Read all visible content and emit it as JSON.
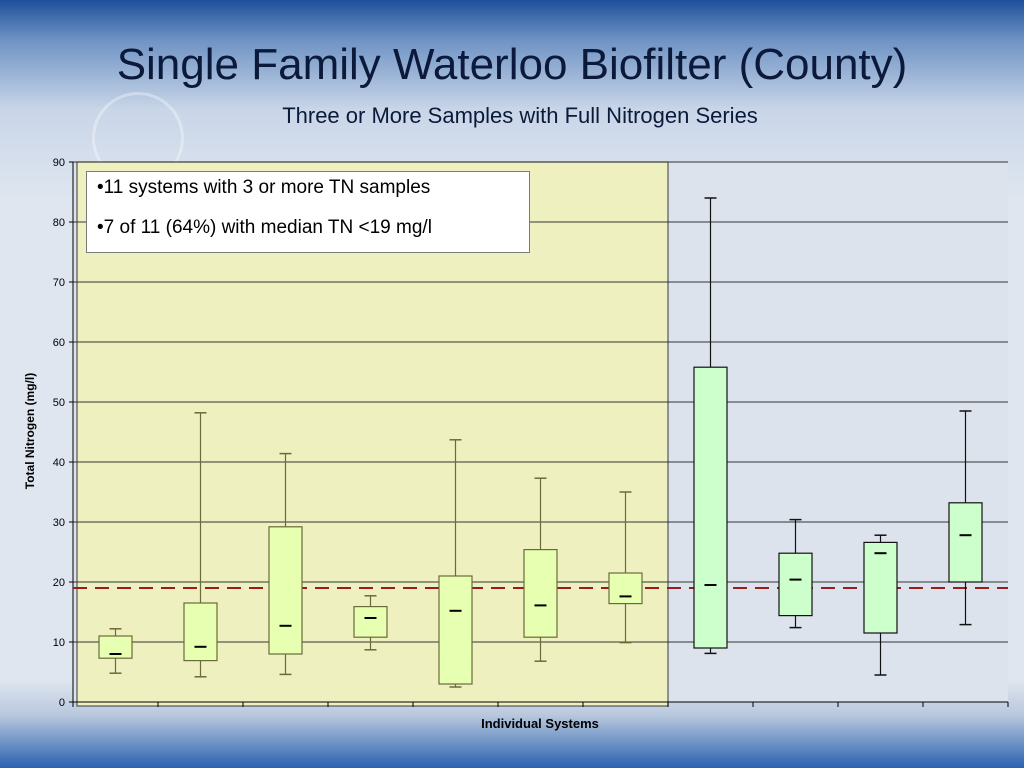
{
  "title": "Single Family Waterloo Biofilter (County)",
  "subtitle": "Three or More Samples with Full Nitrogen Series",
  "callout": {
    "line1": "•11 systems with 3 or more TN samples",
    "line2": "•7 of 11 (64%) with median TN <19 mg/l"
  },
  "colors": {
    "highlight_fill": "#eef0c0",
    "box_fill_highlight": "#e6ffb0",
    "box_fill_other": "#ccffcc",
    "reference_line": "#9b1c1c"
  },
  "chart_data": {
    "type": "box",
    "title": "",
    "xlabel": "Individual Systems",
    "ylabel": "Total Nitrogen (mg/l)",
    "ylim": [
      0,
      90
    ],
    "yticks": [
      0,
      10,
      20,
      30,
      40,
      50,
      60,
      70,
      80,
      90
    ],
    "grid": true,
    "reference_line": {
      "value": 19,
      "style": "dashed"
    },
    "highlighted_systems": 7,
    "systems": [
      {
        "min": 4.8,
        "q1": 7.3,
        "median": 8.0,
        "q3": 11.0,
        "max": 12.2
      },
      {
        "min": 4.2,
        "q1": 6.9,
        "median": 9.2,
        "q3": 16.5,
        "max": 48.2
      },
      {
        "min": 4.6,
        "q1": 8.0,
        "median": 12.7,
        "q3": 29.2,
        "max": 41.4
      },
      {
        "min": 8.7,
        "q1": 10.8,
        "median": 14.0,
        "q3": 15.9,
        "max": 17.7
      },
      {
        "min": 2.5,
        "q1": 3.0,
        "median": 15.2,
        "q3": 21.0,
        "max": 43.7
      },
      {
        "min": 6.8,
        "q1": 10.8,
        "median": 16.1,
        "q3": 25.4,
        "max": 37.3
      },
      {
        "min": 9.9,
        "q1": 16.4,
        "median": 17.6,
        "q3": 21.5,
        "max": 35.0
      },
      {
        "min": 8.1,
        "q1": 9.0,
        "median": 19.5,
        "q3": 55.8,
        "max": 84.0
      },
      {
        "min": 12.4,
        "q1": 14.4,
        "median": 20.4,
        "q3": 24.8,
        "max": 30.4
      },
      {
        "min": 4.5,
        "q1": 11.5,
        "median": 24.8,
        "q3": 26.6,
        "max": 27.8
      },
      {
        "min": 12.9,
        "q1": 20.0,
        "median": 27.8,
        "q3": 33.2,
        "max": 48.5
      }
    ]
  }
}
